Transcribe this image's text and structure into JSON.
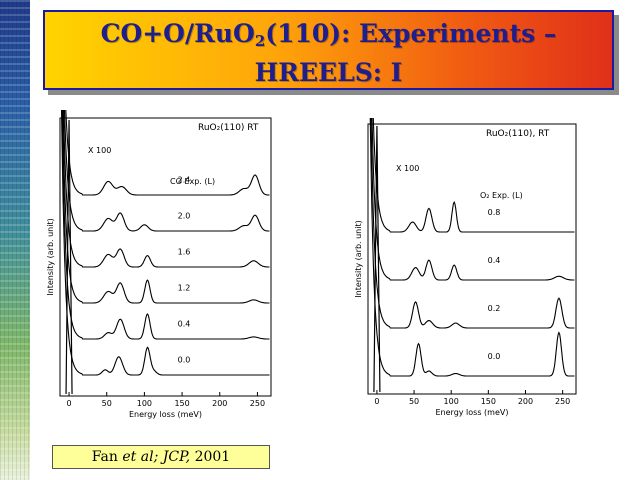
{
  "title": {
    "line1_pre": "CO+O/RuO",
    "line1_sub": "2",
    "line1_post": "(110): Experiments –",
    "line2": "HREELS: I"
  },
  "citation": {
    "authors": "Fan",
    "etal": "et al;",
    "journal": "JCP,",
    "year": "2001"
  },
  "chart_data": [
    {
      "type": "line",
      "xlabel": "Energy loss (meV)",
      "ylabel": "Intensity (arb. unit)",
      "xlim": [
        -12,
        268
      ],
      "xticks": [
        0,
        50,
        100,
        150,
        200,
        250
      ],
      "sample_label": "RuO₂(110) RT",
      "magnification": "X 100",
      "exposure_header": "CO Exp. (L)",
      "series": [
        {
          "name": "0.0",
          "offset": 0,
          "peaks": [
            [
              0,
              120,
              1.5
            ],
            [
              48,
              10,
              4
            ],
            [
              66,
              35,
              5
            ],
            [
              104,
              52,
              3.5
            ],
            [
              112,
              8,
              4
            ]
          ]
        },
        {
          "name": "0.4",
          "offset": 1,
          "peaks": [
            [
              0,
              120,
              1.5
            ],
            [
              52,
              12,
              5
            ],
            [
              68,
              38,
              5
            ],
            [
              104,
              48,
              3.5
            ],
            [
              245,
              4,
              6
            ]
          ]
        },
        {
          "name": "1.2",
          "offset": 2,
          "peaks": [
            [
              0,
              120,
              1.5
            ],
            [
              52,
              22,
              6
            ],
            [
              68,
              38,
              5
            ],
            [
              104,
              44,
              3.5
            ],
            [
              245,
              6,
              6
            ]
          ]
        },
        {
          "name": "1.6",
          "offset": 3,
          "peaks": [
            [
              0,
              120,
              1.5
            ],
            [
              52,
              24,
              6
            ],
            [
              68,
              34,
              5
            ],
            [
              104,
              22,
              4
            ],
            [
              245,
              12,
              6
            ]
          ]
        },
        {
          "name": "2.0",
          "offset": 4,
          "peaks": [
            [
              0,
              120,
              1.5
            ],
            [
              52,
              24,
              6
            ],
            [
              68,
              34,
              5
            ],
            [
              100,
              12,
              5
            ],
            [
              232,
              10,
              6
            ],
            [
              247,
              30,
              5
            ]
          ]
        },
        {
          "name": "2.4",
          "offset": 5,
          "peaks": [
            [
              0,
              120,
              1.5
            ],
            [
              52,
              26,
              6
            ],
            [
              70,
              16,
              6
            ],
            [
              232,
              12,
              6
            ],
            [
              247,
              38,
              5
            ]
          ]
        }
      ]
    },
    {
      "type": "line",
      "xlabel": "Energy loss (meV)",
      "ylabel": "Intensity (arb. unit)",
      "xlim": [
        -12,
        268
      ],
      "xticks": [
        0,
        50,
        100,
        150,
        200,
        250
      ],
      "sample_label": "RuO₂(110), RT",
      "magnification": "X 100",
      "exposure_header": "O₂ Exp. (L)",
      "series": [
        {
          "name": "0.0",
          "offset": 0,
          "peaks": [
            [
              0,
              120,
              1.5
            ],
            [
              56,
              52,
              3.5
            ],
            [
              70,
              8,
              4
            ],
            [
              106,
              4,
              5
            ],
            [
              245,
              70,
              3.5
            ]
          ]
        },
        {
          "name": "0.2",
          "offset": 1,
          "peaks": [
            [
              0,
              120,
              1.5
            ],
            [
              52,
              42,
              4
            ],
            [
              70,
              12,
              5
            ],
            [
              106,
              8,
              5
            ],
            [
              245,
              48,
              4
            ]
          ]
        },
        {
          "name": "0.4",
          "offset": 2,
          "peaks": [
            [
              0,
              120,
              1.5
            ],
            [
              52,
              20,
              5
            ],
            [
              70,
              32,
              4
            ],
            [
              104,
              24,
              3.5
            ],
            [
              245,
              6,
              6
            ]
          ]
        },
        {
          "name": "0.8",
          "offset": 3,
          "peaks": [
            [
              0,
              120,
              1.5
            ],
            [
              48,
              16,
              5
            ],
            [
              70,
              38,
              4
            ],
            [
              104,
              48,
              3
            ]
          ]
        }
      ]
    }
  ]
}
